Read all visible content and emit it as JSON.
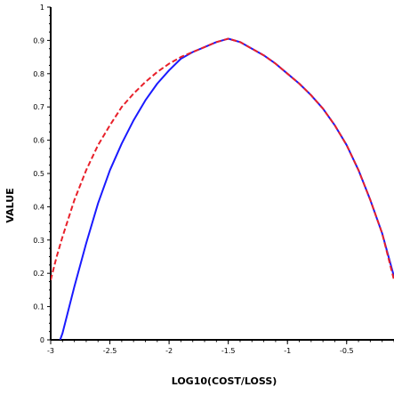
{
  "chart_data": {
    "type": "line",
    "title": "",
    "xlabel": "LOG10(COST/LOSS)",
    "ylabel": "VALUE",
    "xlim": [
      -3,
      -0.1
    ],
    "ylim": [
      0,
      1
    ],
    "x_ticks": [
      -3,
      -2.5,
      -2,
      -1.5,
      -1,
      -0.5
    ],
    "x_tick_labels": [
      "-3",
      "-2.5",
      "-2",
      "-1.5",
      "-1",
      "-0.5"
    ],
    "y_ticks": [
      0,
      0.1,
      0.2,
      0.3,
      0.4,
      0.5,
      0.6,
      0.7,
      0.8,
      0.9,
      1
    ],
    "y_tick_labels": [
      "0",
      "0.1",
      "0.2",
      "0.3",
      "0.4",
      "0.5",
      "0.6",
      "0.7",
      "0.8",
      "0.9",
      "1"
    ],
    "grid": false,
    "legend": "none",
    "series": [
      {
        "color": "#1a1aff",
        "dash": "solid",
        "x": [
          -2.92,
          -2.9,
          -2.8,
          -2.7,
          -2.6,
          -2.5,
          -2.4,
          -2.3,
          -2.2,
          -2.1,
          -2.0,
          -1.9,
          -1.8,
          -1.7,
          -1.6,
          -1.5,
          -1.4,
          -1.3,
          -1.2,
          -1.1,
          -1.0,
          -0.9,
          -0.8,
          -0.7,
          -0.6,
          -0.5,
          -0.4,
          -0.3,
          -0.2,
          -0.1
        ],
        "y": [
          0.0,
          0.02,
          0.16,
          0.29,
          0.41,
          0.51,
          0.59,
          0.66,
          0.72,
          0.77,
          0.81,
          0.845,
          0.865,
          0.88,
          0.895,
          0.905,
          0.895,
          0.875,
          0.855,
          0.83,
          0.8,
          0.77,
          0.735,
          0.695,
          0.645,
          0.585,
          0.51,
          0.42,
          0.32,
          0.19
        ]
      },
      {
        "color": "#e8202a",
        "dash": "dashed",
        "x": [
          -3.0,
          -2.95,
          -2.9,
          -2.8,
          -2.7,
          -2.6,
          -2.5,
          -2.4,
          -2.3,
          -2.2,
          -2.1,
          -2.0,
          -1.9,
          -1.8,
          -1.7,
          -1.6,
          -1.5,
          -1.4,
          -1.3,
          -1.2,
          -1.1,
          -1.0,
          -0.9,
          -0.8,
          -0.7,
          -0.6,
          -0.5,
          -0.4,
          -0.3,
          -0.2,
          -0.1
        ],
        "y": [
          0.18,
          0.25,
          0.31,
          0.42,
          0.51,
          0.585,
          0.645,
          0.7,
          0.74,
          0.775,
          0.805,
          0.83,
          0.85,
          0.865,
          0.88,
          0.895,
          0.905,
          0.895,
          0.875,
          0.855,
          0.83,
          0.8,
          0.77,
          0.735,
          0.695,
          0.645,
          0.585,
          0.51,
          0.42,
          0.32,
          0.18
        ]
      }
    ]
  }
}
